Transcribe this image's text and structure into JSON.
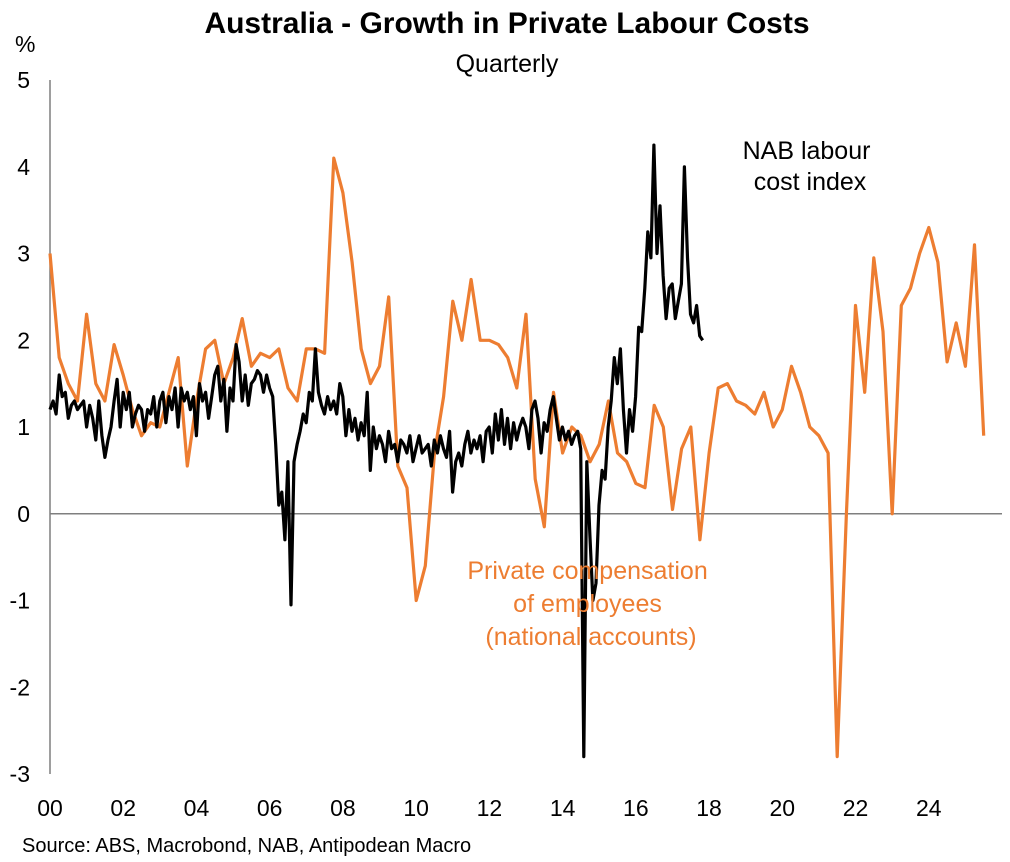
{
  "chart_data": {
    "type": "line",
    "title": "Australia - Growth in Private Labour Costs",
    "subtitle": "Quarterly",
    "ylabel": "%",
    "ylim": [
      -3,
      5
    ],
    "yticks": [
      -3,
      -2,
      -1,
      0,
      1,
      2,
      3,
      4,
      5
    ],
    "xlim": [
      2000,
      2026
    ],
    "xticks": [
      2000,
      2002,
      2004,
      2006,
      2008,
      2010,
      2012,
      2014,
      2016,
      2018,
      2020,
      2022,
      2024
    ],
    "xtick_labels": [
      "00",
      "02",
      "04",
      "06",
      "08",
      "10",
      "12",
      "14",
      "16",
      "18",
      "20",
      "22",
      "24"
    ],
    "source": "Source: ABS, Macrobond, NAB, Antipodean Macro",
    "annotations": [
      {
        "series": "nab",
        "lines": [
          "NAB labour",
          "cost index"
        ]
      },
      {
        "series": "comp",
        "lines": [
          "Private compensation",
          "of employees",
          "(national accounts)"
        ]
      }
    ],
    "series": [
      {
        "key": "comp",
        "name": "Private compensation of employees (national accounts)",
        "color": "#ed7d31",
        "x_start": 2000.0,
        "x_step": 0.25,
        "values": [
          3.0,
          1.8,
          1.5,
          1.3,
          2.3,
          1.5,
          1.3,
          1.95,
          1.6,
          1.2,
          0.9,
          1.05,
          1.0,
          1.4,
          1.8,
          0.55,
          1.3,
          1.9,
          2.0,
          1.5,
          1.8,
          2.25,
          1.7,
          1.85,
          1.8,
          1.9,
          1.45,
          1.3,
          1.9,
          1.9,
          1.85,
          4.1,
          3.7,
          2.9,
          1.9,
          1.5,
          1.7,
          2.5,
          0.55,
          0.3,
          -1.0,
          -0.6,
          0.7,
          1.35,
          2.45,
          2.0,
          2.7,
          2.0,
          2.0,
          1.95,
          1.8,
          1.45,
          2.3,
          0.4,
          -0.15,
          1.4,
          0.7,
          1.0,
          0.9,
          0.6,
          0.8,
          1.3,
          0.7,
          0.6,
          0.35,
          0.3,
          1.25,
          1.0,
          0.05,
          0.75,
          1.0,
          -0.3,
          0.7,
          1.45,
          1.5,
          1.3,
          1.25,
          1.15,
          1.4,
          1.0,
          1.2,
          1.7,
          1.4,
          1.0,
          0.9,
          0.7,
          -2.8,
          0.0,
          2.4,
          1.4,
          2.95,
          2.1,
          0.0,
          2.4,
          2.6,
          3.0,
          3.3,
          2.9,
          1.75,
          2.2,
          1.7,
          3.1,
          0.9
        ],
        "label": "Private compensation of employees"
      },
      {
        "key": "nab",
        "name": "NAB labour cost index",
        "color": "#000000",
        "x_start": 2000.0,
        "x_step": 0.0833,
        "values": [
          1.2,
          1.3,
          1.15,
          1.6,
          1.35,
          1.4,
          1.1,
          1.25,
          1.3,
          1.2,
          1.25,
          1.3,
          1.0,
          1.25,
          1.1,
          0.85,
          1.3,
          0.9,
          0.65,
          0.85,
          1.0,
          1.3,
          1.55,
          1.0,
          1.4,
          1.2,
          1.4,
          1.0,
          1.15,
          1.25,
          1.2,
          0.95,
          1.2,
          1.15,
          1.35,
          1.0,
          1.3,
          1.4,
          1.05,
          1.35,
          1.2,
          1.45,
          1.0,
          1.45,
          1.3,
          1.4,
          1.2,
          1.35,
          0.9,
          1.5,
          1.3,
          1.4,
          1.1,
          1.35,
          1.6,
          1.7,
          1.3,
          1.55,
          0.95,
          1.45,
          1.3,
          1.95,
          1.75,
          1.3,
          1.6,
          1.25,
          1.5,
          1.55,
          1.65,
          1.6,
          1.4,
          1.6,
          1.45,
          1.35,
          0.8,
          0.1,
          0.25,
          -0.3,
          0.6,
          -1.05,
          0.6,
          0.8,
          0.95,
          1.15,
          1.05,
          1.4,
          1.3,
          1.9,
          1.4,
          1.25,
          1.15,
          1.35,
          1.2,
          1.3,
          1.15,
          1.5,
          1.35,
          0.9,
          1.2,
          0.95,
          1.1,
          0.85,
          1.05,
          0.9,
          1.4,
          0.5,
          1.0,
          0.75,
          0.9,
          0.8,
          0.6,
          0.95,
          0.75,
          0.8,
          0.6,
          0.85,
          0.8,
          0.7,
          0.9,
          0.6,
          0.75,
          0.9,
          0.7,
          0.75,
          0.8,
          0.55,
          0.85,
          0.7,
          0.9,
          0.75,
          0.65,
          0.95,
          0.25,
          0.6,
          0.7,
          0.55,
          0.8,
          0.95,
          0.7,
          0.85,
          0.75,
          0.9,
          0.6,
          0.95,
          1.0,
          0.7,
          1.15,
          0.85,
          1.2,
          0.8,
          1.1,
          0.75,
          1.05,
          0.85,
          1.0,
          1.1,
          1.0,
          0.75,
          1.2,
          1.3,
          1.1,
          0.7,
          1.05,
          0.95,
          1.2,
          1.35,
          1.1,
          0.85,
          1.0,
          0.85,
          0.95,
          0.8,
          0.9,
          0.95,
          0.75,
          -2.8,
          0.6,
          -0.25,
          -1.0,
          -0.8,
          0.1,
          0.5,
          0.4,
          1.0,
          1.3,
          1.8,
          1.5,
          1.9,
          1.2,
          0.7,
          1.2,
          0.95,
          1.35,
          2.15,
          2.1,
          2.6,
          3.25,
          2.95,
          4.25,
          3.0,
          3.55,
          2.75,
          2.25,
          2.6,
          2.65,
          2.25,
          2.45,
          2.65,
          4.0,
          2.95,
          2.3,
          2.2,
          2.4,
          2.05,
          2.0
        ]
      }
    ]
  }
}
